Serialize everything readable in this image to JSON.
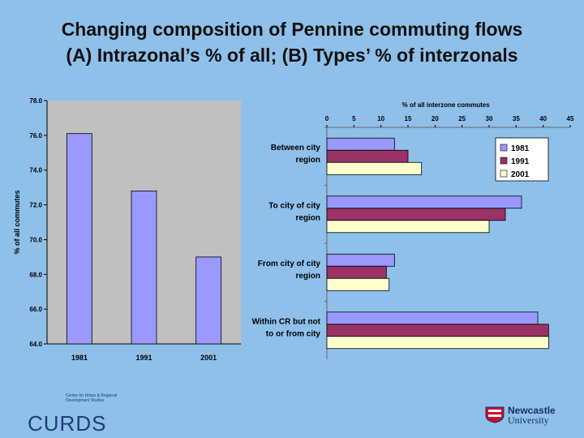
{
  "title": {
    "line1": "Changing composition of Pennine commuting flows",
    "line2": "(A) Intrazonal’s % of all; (B) Types’ % of interzonals"
  },
  "chart_data": [
    {
      "type": "bar",
      "title": "",
      "xlabel": "",
      "ylabel": "% of all commutes",
      "categories": [
        "1981",
        "1991",
        "2001"
      ],
      "values": [
        76.1,
        72.8,
        69.0
      ],
      "ylim": [
        64.0,
        78.0
      ],
      "yticks": [
        "64.0",
        "66.0",
        "68.0",
        "70.0",
        "72.0",
        "74.0",
        "76.0",
        "78.0"
      ],
      "grid": false,
      "color": "#9999ff"
    },
    {
      "type": "bar",
      "orientation": "horizontal",
      "title": "",
      "xlabel": "% of all interzone commutes",
      "ylabel": "",
      "categories": [
        [
          "Between city",
          "region"
        ],
        [
          "To city of city",
          "region"
        ],
        [
          "From city of city",
          "region"
        ],
        [
          "Within CR but not",
          "to or from city"
        ]
      ],
      "series": [
        {
          "name": "1981",
          "color": "#9999ff",
          "values": [
            12.5,
            36.0,
            12.5,
            39.0
          ]
        },
        {
          "name": "1991",
          "color": "#993366",
          "values": [
            15.0,
            33.0,
            11.0,
            41.0
          ]
        },
        {
          "name": "2001",
          "color": "#ffffcc",
          "values": [
            17.5,
            30.0,
            11.5,
            41.0
          ]
        }
      ],
      "xlim": [
        0,
        45
      ],
      "xticks": [
        "0",
        "5",
        "10",
        "15",
        "20",
        "25",
        "30",
        "35",
        "40",
        "45"
      ],
      "legend_position": "top-right",
      "grid": false
    }
  ],
  "branding": {
    "curds_small": "Centre for Urban & Regional Development Studies",
    "curds_big": "CURDS",
    "newcastle_line1": "Newcastle",
    "newcastle_line2": "University"
  }
}
